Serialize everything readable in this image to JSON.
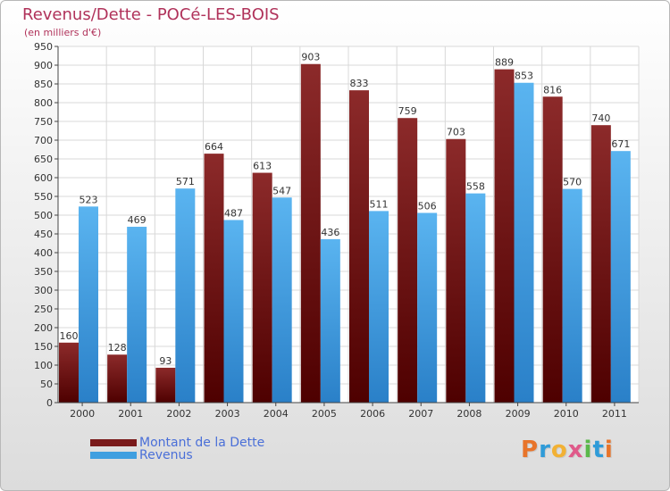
{
  "title": "Revenus/Dette - POCé-LES-BOIS",
  "subtitle": "(en milliers d'€)",
  "colors": {
    "dette": "#7a1a1a",
    "revenus": "#3f9fe0",
    "title": "#b0325a",
    "legend_text": "#4a6fd8"
  },
  "legend": [
    {
      "label": "Montant de la Dette",
      "color": "#7a1a1a"
    },
    {
      "label": "Revenus",
      "color": "#3f9fe0"
    }
  ],
  "logo": {
    "letters": [
      "P",
      "r",
      "o",
      "x",
      "i",
      "t",
      "i"
    ],
    "colors": [
      "#e8742a",
      "#2f9bd8",
      "#f2b134",
      "#e05a8a",
      "#5bb84a",
      "#2f9bd8",
      "#e8742a"
    ]
  },
  "chart_data": {
    "type": "bar",
    "categories": [
      "2000",
      "2001",
      "2002",
      "2003",
      "2004",
      "2005",
      "2006",
      "2007",
      "2008",
      "2009",
      "2010",
      "2011"
    ],
    "series": [
      {
        "name": "Montant de la Dette",
        "values": [
          160,
          128,
          93,
          664,
          613,
          903,
          833,
          759,
          703,
          889,
          816,
          740
        ]
      },
      {
        "name": "Revenus",
        "values": [
          523,
          469,
          571,
          487,
          547,
          436,
          511,
          506,
          558,
          853,
          570,
          671
        ]
      }
    ],
    "yticks": [
      0,
      50,
      100,
      150,
      200,
      250,
      300,
      350,
      400,
      450,
      500,
      550,
      600,
      650,
      700,
      750,
      800,
      850,
      900,
      950
    ],
    "ylim": [
      0,
      950
    ],
    "grid": true,
    "legend_position": "bottom-left"
  }
}
